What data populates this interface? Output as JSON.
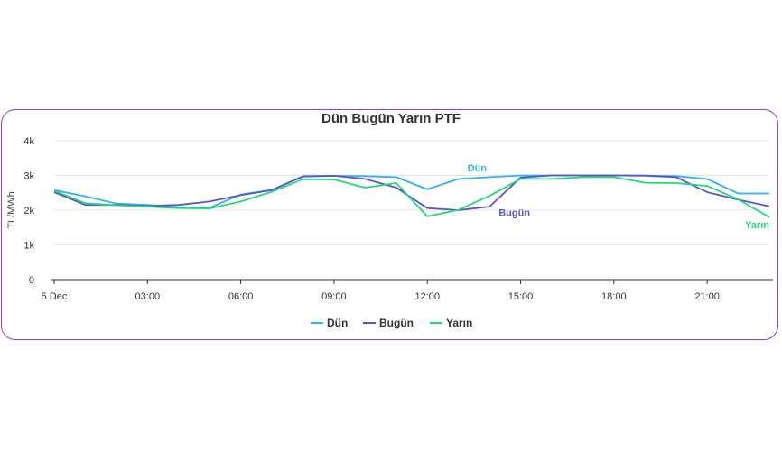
{
  "chart_data": {
    "type": "line",
    "title": "Dün Bugün Yarın PTF",
    "ylabel": "TL/MWh",
    "xlabel": "",
    "ylim": [
      0,
      4000
    ],
    "yticks": [
      0,
      1000,
      2000,
      3000,
      4000
    ],
    "ytick_labels": [
      "0",
      "1k",
      "2k",
      "3k",
      "4k"
    ],
    "x_hours": [
      0,
      1,
      2,
      3,
      4,
      5,
      6,
      7,
      8,
      9,
      10,
      11,
      12,
      13,
      14,
      15,
      16,
      17,
      18,
      19,
      20,
      21,
      22,
      23
    ],
    "xticks": [
      0,
      3,
      6,
      9,
      12,
      15,
      18,
      21
    ],
    "xtick_labels": [
      "5 Dec",
      "03:00",
      "06:00",
      "09:00",
      "12:00",
      "15:00",
      "18:00",
      "21:00"
    ],
    "grid": true,
    "legend_position": "bottom-center",
    "series": [
      {
        "name": "Dün",
        "color": "#3ab0ea",
        "values": [
          2580,
          2400,
          2190,
          2150,
          2080,
          2070,
          2450,
          2580,
          2980,
          2990,
          2980,
          2950,
          2600,
          2900,
          2950,
          3000,
          3000,
          3000,
          3000,
          3000,
          2980,
          2900,
          2480,
          2480
        ]
      },
      {
        "name": "Bugün",
        "color": "#5a55c7",
        "values": [
          2520,
          2150,
          2150,
          2120,
          2150,
          2250,
          2430,
          2580,
          2970,
          2990,
          2900,
          2650,
          2060,
          2000,
          2100,
          2940,
          3000,
          3000,
          3000,
          2990,
          2950,
          2520,
          2300,
          2110
        ]
      },
      {
        "name": "Yarın",
        "color": "#27d67c",
        "values": [
          2560,
          2200,
          2140,
          2100,
          2060,
          2050,
          2250,
          2530,
          2890,
          2880,
          2650,
          2780,
          1820,
          2010,
          2410,
          2900,
          2900,
          2950,
          2950,
          2790,
          2780,
          2700,
          2310,
          1800
        ]
      }
    ],
    "series_labels": [
      "Dün",
      "Bugün",
      "Yarın"
    ]
  }
}
